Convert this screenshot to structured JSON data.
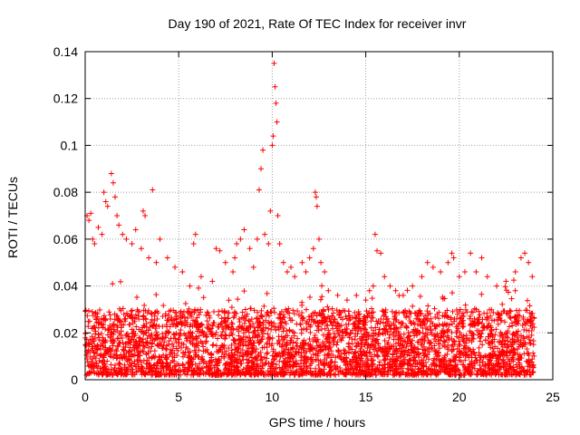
{
  "chart_data": {
    "type": "scatter",
    "title": "Day 190 of 2021, Rate Of TEC Index for receiver invr",
    "xlabel": "GPS time / hours",
    "ylabel": "ROTI / TECUs",
    "xlim": [
      0,
      25
    ],
    "ylim": [
      0,
      0.14
    ],
    "x_ticks": [
      0,
      5,
      10,
      15,
      20,
      25
    ],
    "x_tick_labels": [
      "0",
      "5",
      "10",
      "15",
      "20",
      "25"
    ],
    "y_ticks": [
      0,
      0.02,
      0.04,
      0.06,
      0.08,
      0.1,
      0.12,
      0.14
    ],
    "y_tick_labels": [
      "0",
      "0.02",
      "0.04",
      "0.06",
      "0.08",
      "0.1",
      "0.12",
      "0.14"
    ],
    "grid": true,
    "legend": "none",
    "marker": "+",
    "marker_color": "#ff0000",
    "series": [
      {
        "name": "ROTI",
        "data_range_hours": [
          0,
          24
        ],
        "baseline_min": 0.002,
        "typical_upper": 0.03,
        "points": [
          [
            0.1,
            0.07
          ],
          [
            0.2,
            0.068
          ],
          [
            0.3,
            0.071
          ],
          [
            0.4,
            0.06
          ],
          [
            0.5,
            0.058
          ],
          [
            0.7,
            0.065
          ],
          [
            0.9,
            0.062
          ],
          [
            1.0,
            0.08
          ],
          [
            1.1,
            0.076
          ],
          [
            1.2,
            0.074
          ],
          [
            1.4,
            0.088
          ],
          [
            1.5,
            0.084
          ],
          [
            1.6,
            0.078
          ],
          [
            1.7,
            0.07
          ],
          [
            1.8,
            0.066
          ],
          [
            2.0,
            0.062
          ],
          [
            2.2,
            0.06
          ],
          [
            2.5,
            0.058
          ],
          [
            2.7,
            0.064
          ],
          [
            3.0,
            0.056
          ],
          [
            3.1,
            0.072
          ],
          [
            3.2,
            0.07
          ],
          [
            3.4,
            0.052
          ],
          [
            3.6,
            0.081
          ],
          [
            3.8,
            0.05
          ],
          [
            4.0,
            0.06
          ],
          [
            4.4,
            0.052
          ],
          [
            4.8,
            0.048
          ],
          [
            5.2,
            0.046
          ],
          [
            5.6,
            0.04
          ],
          [
            5.8,
            0.058
          ],
          [
            5.9,
            0.062
          ],
          [
            6.2,
            0.044
          ],
          [
            6.8,
            0.042
          ],
          [
            7.0,
            0.056
          ],
          [
            7.2,
            0.055
          ],
          [
            7.5,
            0.05
          ],
          [
            7.9,
            0.046
          ],
          [
            8.0,
            0.052
          ],
          [
            8.1,
            0.058
          ],
          [
            8.3,
            0.06
          ],
          [
            8.5,
            0.064
          ],
          [
            8.8,
            0.056
          ],
          [
            9.0,
            0.048
          ],
          [
            9.2,
            0.06
          ],
          [
            9.3,
            0.081
          ],
          [
            9.4,
            0.09
          ],
          [
            9.5,
            0.098
          ],
          [
            9.6,
            0.062
          ],
          [
            9.8,
            0.058
          ],
          [
            9.9,
            0.072
          ],
          [
            10.0,
            0.1
          ],
          [
            10.05,
            0.104
          ],
          [
            10.1,
            0.135
          ],
          [
            10.15,
            0.125
          ],
          [
            10.2,
            0.118
          ],
          [
            10.25,
            0.11
          ],
          [
            10.3,
            0.07
          ],
          [
            10.4,
            0.058
          ],
          [
            10.6,
            0.05
          ],
          [
            10.8,
            0.046
          ],
          [
            11.0,
            0.048
          ],
          [
            11.2,
            0.044
          ],
          [
            11.6,
            0.05
          ],
          [
            11.8,
            0.046
          ],
          [
            12.0,
            0.052
          ],
          [
            12.2,
            0.056
          ],
          [
            12.3,
            0.08
          ],
          [
            12.35,
            0.078
          ],
          [
            12.4,
            0.074
          ],
          [
            12.5,
            0.06
          ],
          [
            12.6,
            0.05
          ],
          [
            12.8,
            0.046
          ],
          [
            13.0,
            0.038
          ],
          [
            13.5,
            0.036
          ],
          [
            14.0,
            0.034
          ],
          [
            14.5,
            0.036
          ],
          [
            15.0,
            0.034
          ],
          [
            15.2,
            0.038
          ],
          [
            15.4,
            0.04
          ],
          [
            15.5,
            0.062
          ],
          [
            15.6,
            0.055
          ],
          [
            15.8,
            0.054
          ],
          [
            16.0,
            0.044
          ],
          [
            16.3,
            0.04
          ],
          [
            16.6,
            0.038
          ],
          [
            17.0,
            0.036
          ],
          [
            17.5,
            0.04
          ],
          [
            18.0,
            0.044
          ],
          [
            18.3,
            0.05
          ],
          [
            18.6,
            0.048
          ],
          [
            19.0,
            0.046
          ],
          [
            19.4,
            0.05
          ],
          [
            19.6,
            0.054
          ],
          [
            19.7,
            0.052
          ],
          [
            20.0,
            0.044
          ],
          [
            20.3,
            0.046
          ],
          [
            20.6,
            0.054
          ],
          [
            20.9,
            0.046
          ],
          [
            21.2,
            0.052
          ],
          [
            21.5,
            0.044
          ],
          [
            22.0,
            0.04
          ],
          [
            22.5,
            0.042
          ],
          [
            23.0,
            0.046
          ],
          [
            23.3,
            0.052
          ],
          [
            23.5,
            0.054
          ],
          [
            23.7,
            0.05
          ],
          [
            23.9,
            0.044
          ]
        ]
      }
    ]
  }
}
